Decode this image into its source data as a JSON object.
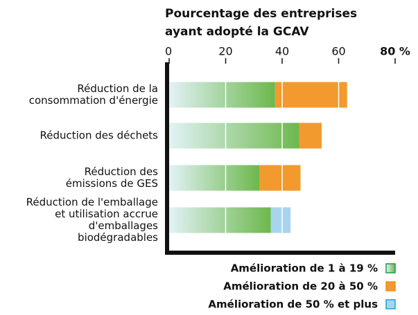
{
  "chart_data": {
    "type": "stacked-barh",
    "title": [
      "Pourcentage des entreprises",
      "ayant adopté la GCAV"
    ],
    "categories": [
      [
        "Réduction de la",
        "consommation d'énergie"
      ],
      [
        "Réduction des déchets"
      ],
      [
        "Réduction des",
        "émissions de GES"
      ],
      [
        "Réduction de l'emballage",
        "et utilisation accrue",
        "d'emballages",
        "biodégradables"
      ]
    ],
    "series": [
      {
        "name": "Amélioration de 1 à 19 %",
        "color": "#6cb84c",
        "values": [
          37.5,
          46,
          32,
          36
        ]
      },
      {
        "name": "Amélioration de 20 à 50 %",
        "color": "#f29a2e",
        "values": [
          25.5,
          8,
          14.5,
          null
        ]
      },
      {
        "name": "Amélioration de 50 % et plus",
        "color": "#a8d4ee",
        "values": [
          null,
          null,
          null,
          7
        ]
      }
    ],
    "legend_text_colors": [
      "#1a9a4a",
      "#f0901e",
      "#1ea0d8"
    ],
    "xlim": [
      0,
      80
    ],
    "xticks": [
      0,
      20,
      40,
      60,
      {
        "value": 80,
        "label": "80 %"
      }
    ],
    "grid": true
  }
}
